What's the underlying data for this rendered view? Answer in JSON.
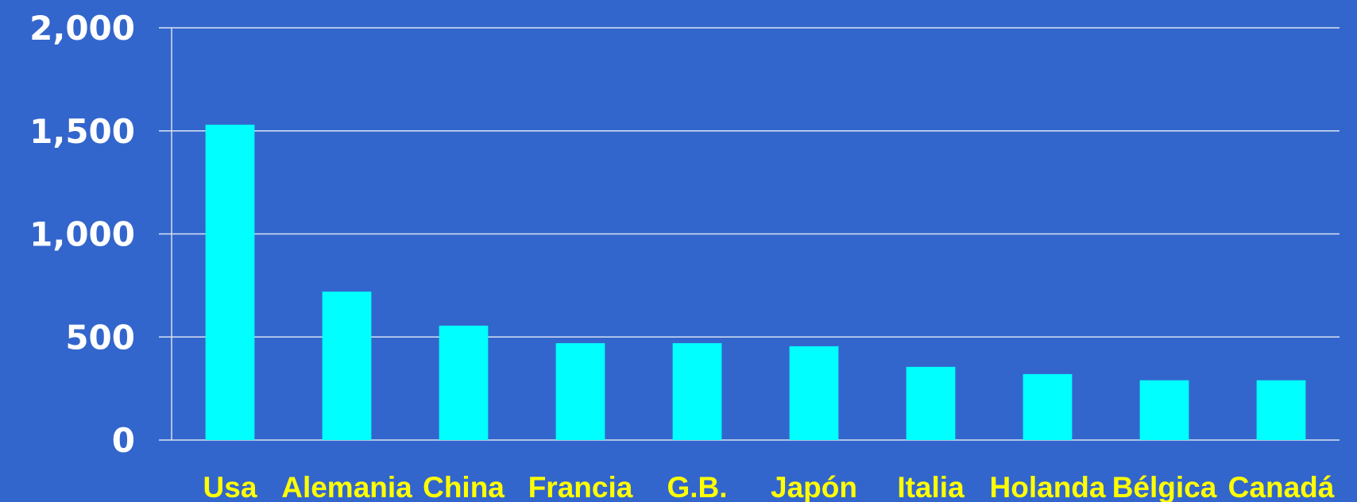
{
  "colors": {
    "background": "#3366CC",
    "bar": "#00FFFF",
    "gridline": "#D9E1F2",
    "tick_label": "#FFFFFF",
    "category_label": "#FFFF00",
    "highlight_label": "#FF0000"
  },
  "chart_data": {
    "type": "bar",
    "title": "",
    "xlabel": "",
    "ylabel": "",
    "categories": [
      "Usa",
      "Alemania",
      "China",
      "Francia",
      "G.B.",
      "Japón",
      "Italia",
      "Holanda",
      "Bélgica",
      "Canadá"
    ],
    "values": [
      1530,
      720,
      555,
      470,
      470,
      455,
      355,
      320,
      290,
      290
    ],
    "highlight_category": "Japón",
    "ylim": [
      0,
      2000
    ],
    "yticks": [
      0,
      500,
      1000,
      1500,
      2000
    ],
    "ytick_labels": [
      "0",
      "500",
      "1,000",
      "1,500",
      "2,000"
    ],
    "grid": true,
    "legend": "none"
  }
}
